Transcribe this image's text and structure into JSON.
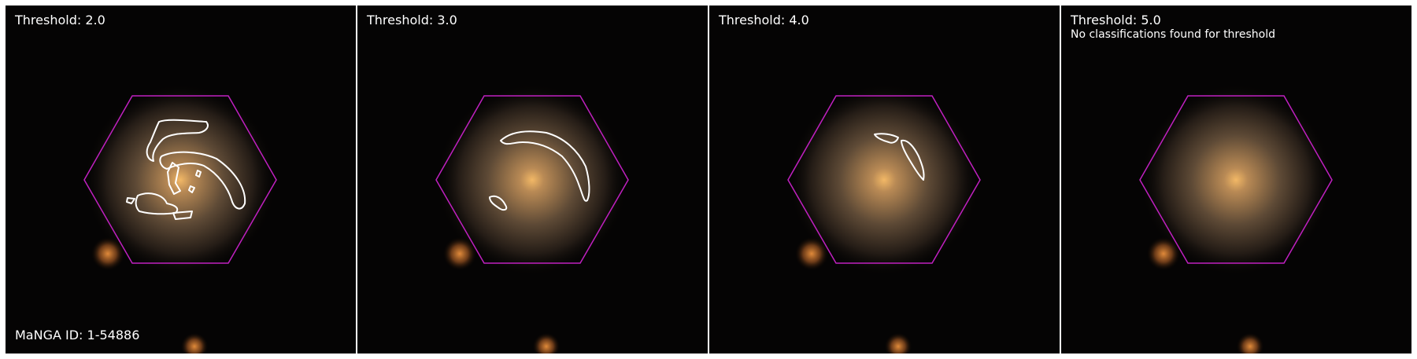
{
  "panels": [
    {
      "title": "Threshold: 2.0",
      "note": "",
      "contours": "t2"
    },
    {
      "title": "Threshold: 3.0",
      "note": "",
      "contours": "t3"
    },
    {
      "title": "Threshold: 4.0",
      "note": "",
      "contours": "t4"
    },
    {
      "title": "Threshold: 5.0",
      "note": "No classifications found for threshold",
      "contours": "none"
    }
  ],
  "manga_id": "MaNGA ID: 1-54886",
  "colors": {
    "background": "#000000",
    "hexagon": "#c020c0",
    "contour": "#ffffff",
    "galaxy_core": "#f0b060",
    "galaxy_halo": "#8a6a4a"
  }
}
